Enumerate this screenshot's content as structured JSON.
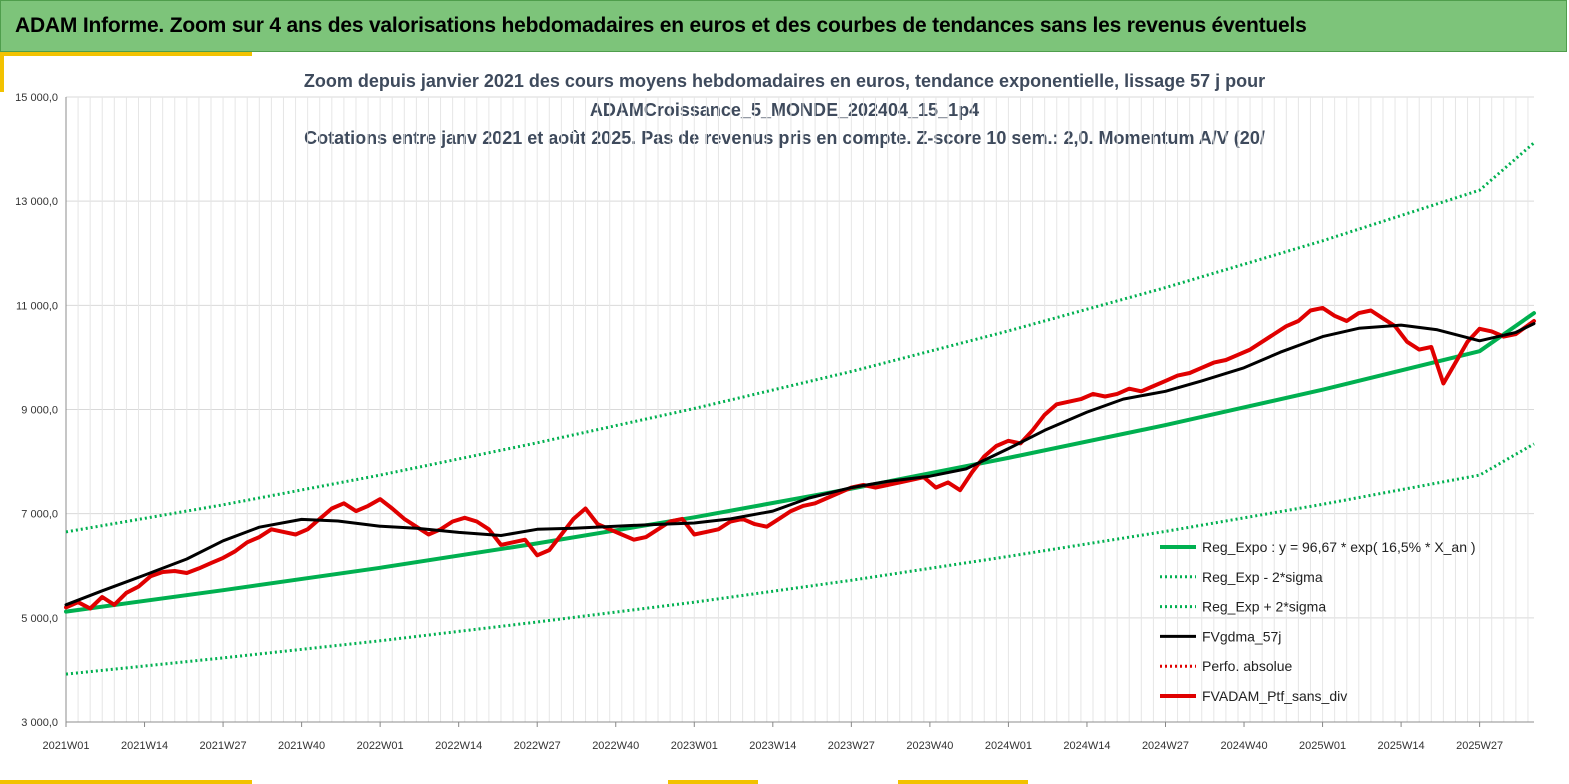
{
  "banner": {
    "title": "ADAM Informe. Zoom sur 4 ans des valorisations hebdomadaires en euros et des courbes de tendances sans les revenus éventuels"
  },
  "colors": {
    "banner": "#7dc47a",
    "accent": "#f2c200",
    "trend": "#00b050",
    "band": "#00b050",
    "smooth": "#000000",
    "perf": "#e00000",
    "portfolio": "#e00000"
  },
  "chart_data": {
    "type": "line",
    "title": [
      "Zoom depuis janvier 2021 des cours moyens hebdomadaires  en euros, tendance exponentielle, lissage 57 j pour",
      "ADAMCroissance_5_MONDE_202404_15_1p4",
      "Cotations entre janv 2021 et août 2025. Pas de revenus pris en compte. Z-score 10 sem.: 2,0. Momentum A/V (20/"
    ],
    "ylim": [
      3000,
      15000
    ],
    "yticks": [
      "3 000,0",
      "5 000,0",
      "7 000,0",
      "9 000,0",
      "11 000,0",
      "13 000,0",
      "15 000,0"
    ],
    "xticks": [
      "2021W01",
      "2021W14",
      "2021W27",
      "2021W40",
      "2022W01",
      "2022W14",
      "2022W27",
      "2022W40",
      "2023W01",
      "2023W14",
      "2023W27",
      "2023W40",
      "2024W01",
      "2024W14",
      "2024W27",
      "2024W40",
      "2025W01",
      "2025W14",
      "2025W27"
    ],
    "grid": true,
    "legend_position": "bottom-right",
    "series": [
      {
        "name": "Reg_Expo : y = 96,67 * exp( 16,5% *  X_an )",
        "style": "solid-thick",
        "color": "#00b050",
        "x": [
          0,
          26,
          52,
          78,
          104,
          130,
          156,
          182,
          208,
          234,
          243
        ],
        "y": [
          5120,
          5530,
          5960,
          6430,
          6930,
          7480,
          8070,
          8700,
          9380,
          10120,
          10850
        ]
      },
      {
        "name": "Reg_Exp - 2*sigma",
        "style": "dotted",
        "color": "#00b050",
        "x": [
          0,
          26,
          52,
          78,
          104,
          130,
          156,
          182,
          208,
          234,
          243
        ],
        "y": [
          3920,
          4230,
          4560,
          4920,
          5300,
          5720,
          6180,
          6660,
          7180,
          7740,
          8340
        ]
      },
      {
        "name": "Reg_Exp + 2*sigma",
        "style": "dotted",
        "color": "#00b050",
        "x": [
          0,
          26,
          52,
          78,
          104,
          130,
          156,
          182,
          208,
          234,
          243
        ],
        "y": [
          6650,
          7170,
          7740,
          8360,
          9020,
          9730,
          10510,
          11340,
          12240,
          13210,
          14120
        ]
      },
      {
        "name": "FVgdma_57j",
        "style": "solid",
        "color": "#000000",
        "x": [
          0,
          6,
          13,
          20,
          26,
          32,
          39,
          45,
          52,
          58,
          65,
          72,
          78,
          84,
          91,
          97,
          104,
          110,
          117,
          123,
          130,
          136,
          143,
          149,
          156,
          162,
          169,
          175,
          182,
          188,
          195,
          201,
          208,
          214,
          221,
          227,
          234,
          240,
          243
        ],
        "y": [
          5250,
          5520,
          5820,
          6130,
          6480,
          6740,
          6890,
          6860,
          6760,
          6720,
          6640,
          6580,
          6700,
          6720,
          6760,
          6790,
          6820,
          6900,
          7050,
          7300,
          7500,
          7620,
          7720,
          7860,
          8250,
          8600,
          8950,
          9200,
          9350,
          9550,
          9800,
          10100,
          10400,
          10560,
          10620,
          10530,
          10320,
          10480,
          10650
        ]
      },
      {
        "name": "Perfo. absolue",
        "style": "dotted",
        "color": "#e00000",
        "x": [],
        "y": []
      },
      {
        "name": "FVADAM_Ptf_sans_div",
        "style": "solid-thick",
        "color": "#e00000",
        "x": [
          0,
          2,
          4,
          6,
          8,
          10,
          12,
          14,
          16,
          18,
          20,
          22,
          24,
          26,
          28,
          30,
          32,
          34,
          36,
          38,
          40,
          42,
          44,
          46,
          48,
          50,
          52,
          54,
          56,
          58,
          60,
          62,
          64,
          66,
          68,
          70,
          72,
          74,
          76,
          78,
          80,
          82,
          84,
          86,
          88,
          90,
          92,
          94,
          96,
          98,
          100,
          102,
          104,
          106,
          108,
          110,
          112,
          114,
          116,
          118,
          120,
          122,
          124,
          126,
          128,
          130,
          132,
          134,
          136,
          138,
          140,
          142,
          144,
          146,
          148,
          150,
          152,
          154,
          156,
          158,
          160,
          162,
          164,
          166,
          168,
          170,
          172,
          174,
          176,
          178,
          180,
          182,
          184,
          186,
          188,
          190,
          192,
          194,
          196,
          198,
          200,
          202,
          204,
          206,
          208,
          210,
          212,
          214,
          216,
          218,
          220,
          222,
          224,
          226,
          228,
          230,
          232,
          234,
          236,
          238,
          240,
          243
        ],
        "y": [
          5200,
          5300,
          5180,
          5400,
          5250,
          5480,
          5600,
          5800,
          5880,
          5900,
          5860,
          5950,
          6050,
          6150,
          6280,
          6450,
          6550,
          6700,
          6650,
          6600,
          6700,
          6900,
          7100,
          7200,
          7050,
          7150,
          7280,
          7100,
          6900,
          6750,
          6600,
          6700,
          6850,
          6920,
          6850,
          6700,
          6400,
          6450,
          6500,
          6200,
          6300,
          6600,
          6900,
          7100,
          6800,
          6700,
          6600,
          6500,
          6550,
          6700,
          6850,
          6900,
          6600,
          6650,
          6700,
          6850,
          6900,
          6800,
          6750,
          6900,
          7050,
          7150,
          7200,
          7300,
          7400,
          7500,
          7550,
          7500,
          7550,
          7600,
          7650,
          7700,
          7500,
          7600,
          7450,
          7800,
          8100,
          8300,
          8400,
          8350,
          8600,
          8900,
          9100,
          9150,
          9200,
          9300,
          9250,
          9300,
          9400,
          9350,
          9450,
          9550,
          9650,
          9700,
          9800,
          9900,
          9950,
          10050,
          10150,
          10300,
          10450,
          10600,
          10700,
          10900,
          10950,
          10800,
          10700,
          10850,
          10900,
          10750,
          10600,
          10300,
          10150,
          10200,
          9500,
          9900,
          10300,
          10550,
          10500,
          10400,
          10450,
          10700
        ]
      }
    ]
  }
}
